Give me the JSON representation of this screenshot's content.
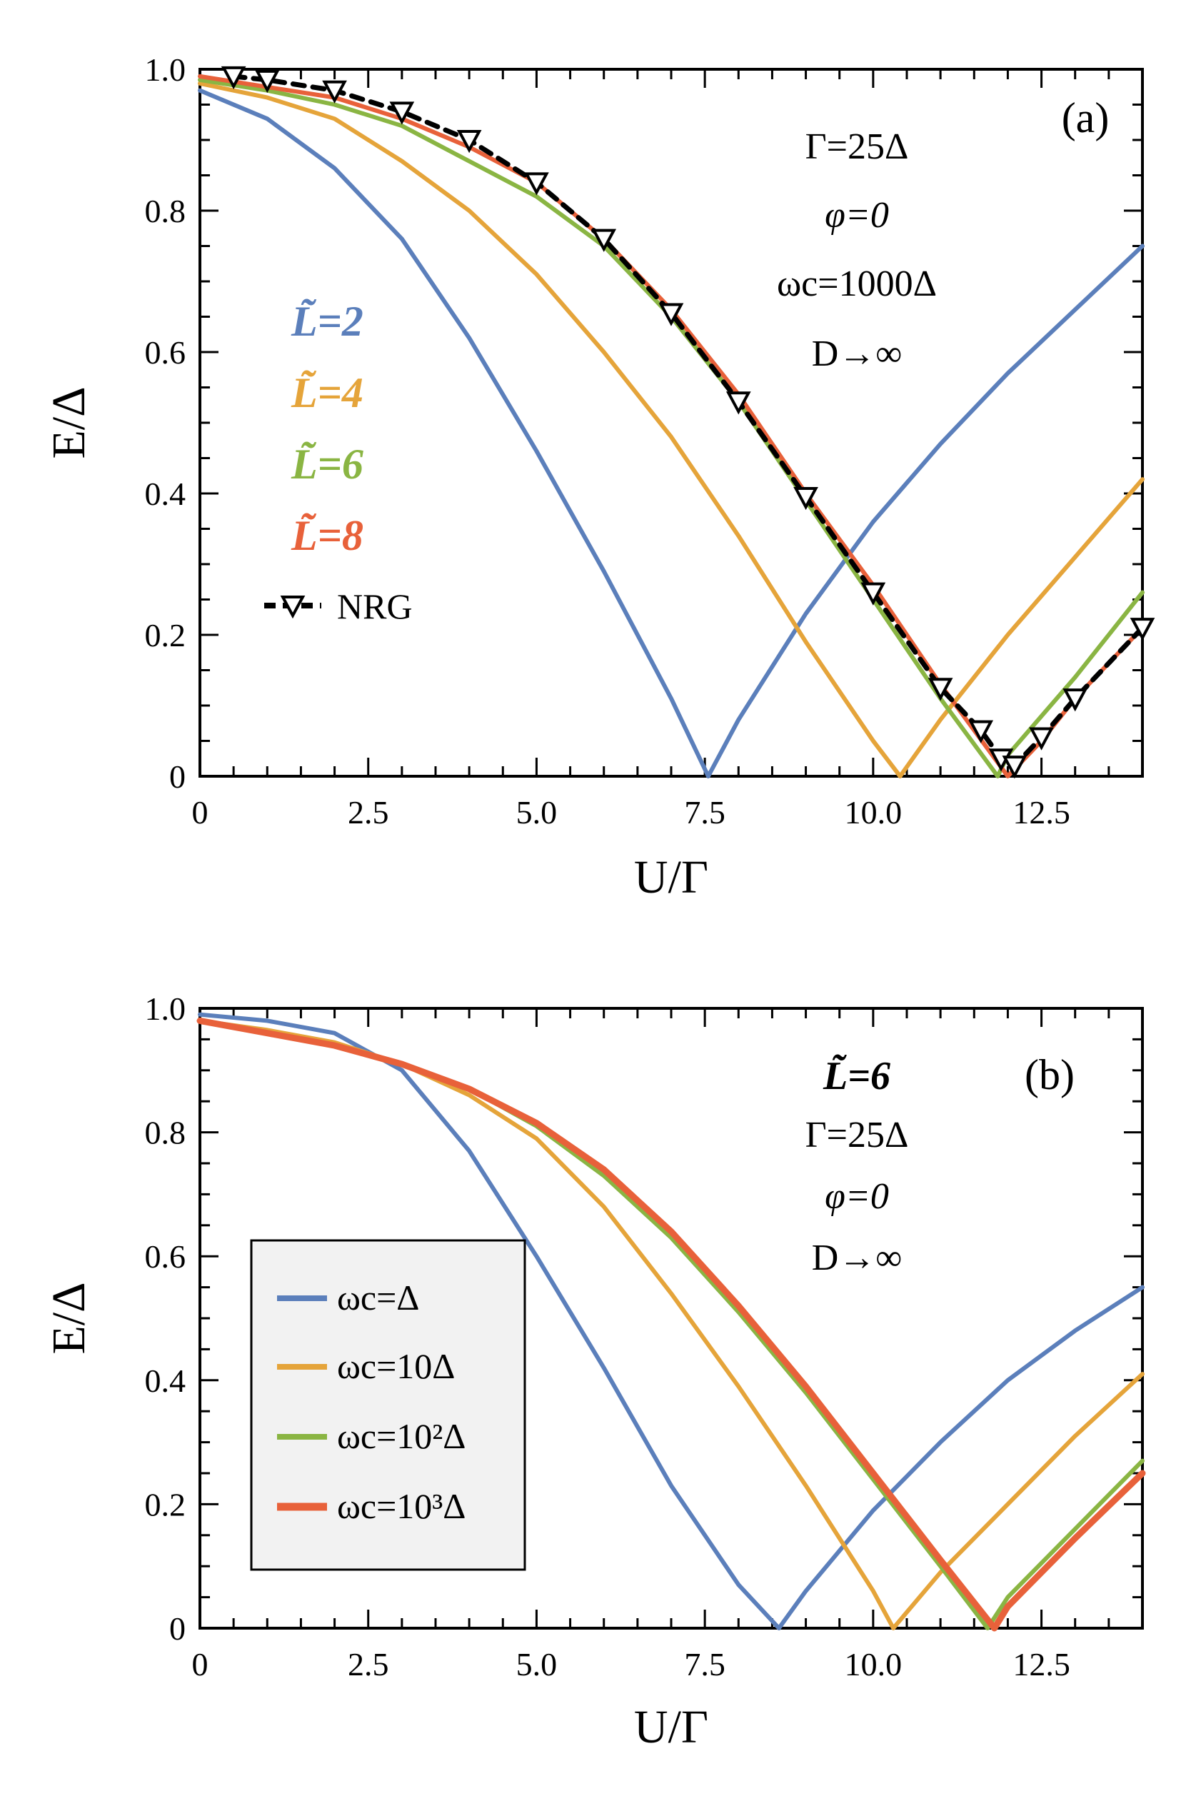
{
  "chart_data": [
    {
      "panel": "(a)",
      "type": "line",
      "xlabel": "U/Γ",
      "ylabel": "E/Δ",
      "xlim": [
        0,
        14
      ],
      "ylim": [
        0,
        1
      ],
      "xticks": [
        "0",
        "2.5",
        "5.0",
        "7.5",
        "10.0",
        "12.5"
      ],
      "yticks": [
        "0",
        "0.2",
        "0.4",
        "0.6",
        "0.8",
        "1.0"
      ],
      "annotations": [
        "Γ=25Δ",
        "φ=0",
        "ωc=1000Δ",
        "D→∞"
      ],
      "legend_placement": "left",
      "series": [
        {
          "name": "L̃=2",
          "color": "#5b7fbb",
          "x": [
            0,
            1,
            2,
            3,
            4,
            5,
            6,
            7,
            7.55,
            8,
            9,
            10,
            11,
            12,
            13,
            14
          ],
          "y": [
            0.97,
            0.93,
            0.86,
            0.76,
            0.62,
            0.46,
            0.29,
            0.11,
            0.0,
            0.08,
            0.23,
            0.36,
            0.47,
            0.57,
            0.66,
            0.75
          ]
        },
        {
          "name": "L̃=4",
          "color": "#e5a43a",
          "x": [
            0,
            1,
            2,
            3,
            4,
            5,
            6,
            7,
            8,
            9,
            10,
            10.4,
            11,
            12,
            13,
            14
          ],
          "y": [
            0.98,
            0.96,
            0.93,
            0.87,
            0.8,
            0.71,
            0.6,
            0.48,
            0.34,
            0.19,
            0.05,
            0.0,
            0.08,
            0.2,
            0.31,
            0.42
          ]
        },
        {
          "name": "L̃=6",
          "color": "#8ab543",
          "x": [
            0,
            1,
            2,
            3,
            4,
            5,
            6,
            7,
            8,
            9,
            10,
            11,
            11.85,
            12,
            13,
            14
          ],
          "y": [
            0.985,
            0.97,
            0.95,
            0.92,
            0.87,
            0.82,
            0.75,
            0.65,
            0.53,
            0.39,
            0.25,
            0.11,
            0.0,
            0.03,
            0.14,
            0.26
          ]
        },
        {
          "name": "L̃=8",
          "color": "#e8613a",
          "x": [
            0,
            1,
            2,
            3,
            4,
            5,
            6,
            7,
            8,
            9,
            10,
            11,
            12.0,
            12.5,
            13,
            14
          ],
          "y": [
            0.99,
            0.975,
            0.96,
            0.93,
            0.89,
            0.84,
            0.76,
            0.66,
            0.54,
            0.4,
            0.27,
            0.13,
            0.0,
            0.05,
            0.11,
            0.21
          ]
        },
        {
          "name": "NRG",
          "color": "#000000",
          "style": "dashed-triangles",
          "x": [
            0.5,
            1,
            2,
            3,
            4,
            5,
            6,
            7,
            8,
            9,
            10,
            11,
            11.6,
            11.9,
            12.1,
            12.5,
            13,
            14
          ],
          "y": [
            0.99,
            0.985,
            0.97,
            0.94,
            0.9,
            0.84,
            0.76,
            0.655,
            0.53,
            0.395,
            0.26,
            0.125,
            0.065,
            0.025,
            0.015,
            0.055,
            0.11,
            0.21
          ]
        }
      ]
    },
    {
      "panel": "(b)",
      "type": "line",
      "xlabel": "U/Γ",
      "ylabel": "E/Δ",
      "xlim": [
        0,
        14
      ],
      "ylim": [
        0,
        1
      ],
      "xticks": [
        "0",
        "2.5",
        "5.0",
        "7.5",
        "10.0",
        "12.5"
      ],
      "yticks": [
        "0",
        "0.2",
        "0.4",
        "0.6",
        "0.8",
        "1.0"
      ],
      "annotations": [
        "L̃=6",
        "Γ=25Δ",
        "φ=0",
        "D→∞"
      ],
      "legend_placement": "bottom-left",
      "series": [
        {
          "name": "ωc=Δ",
          "color": "#5b7fbb",
          "x": [
            0,
            1,
            2,
            2.5,
            3,
            4,
            5,
            6,
            7,
            8,
            8.6,
            9,
            10,
            11,
            12,
            13,
            14
          ],
          "y": [
            0.99,
            0.98,
            0.96,
            0.93,
            0.9,
            0.77,
            0.6,
            0.42,
            0.23,
            0.07,
            0.0,
            0.06,
            0.19,
            0.3,
            0.4,
            0.48,
            0.55
          ]
        },
        {
          "name": "ωc=10Δ",
          "color": "#e5a43a",
          "x": [
            0,
            1,
            2,
            3,
            4,
            5,
            6,
            7,
            8,
            9,
            10,
            10.3,
            11,
            12,
            13,
            14
          ],
          "y": [
            0.98,
            0.965,
            0.945,
            0.91,
            0.86,
            0.79,
            0.68,
            0.54,
            0.39,
            0.23,
            0.06,
            0.0,
            0.09,
            0.2,
            0.31,
            0.41
          ]
        },
        {
          "name": "ωc=10²Δ",
          "color": "#8ab543",
          "x": [
            0,
            1,
            2,
            3,
            4,
            5,
            6,
            7,
            8,
            9,
            10,
            11,
            11.7,
            12,
            13,
            14
          ],
          "y": [
            0.98,
            0.96,
            0.94,
            0.91,
            0.87,
            0.81,
            0.73,
            0.63,
            0.51,
            0.38,
            0.24,
            0.1,
            0.0,
            0.05,
            0.16,
            0.27
          ]
        },
        {
          "name": "ωc=10³Δ",
          "color": "#e8613a",
          "x": [
            0,
            1,
            2,
            3,
            4,
            5,
            6,
            7,
            8,
            9,
            10,
            11,
            11.8,
            12,
            13,
            14
          ],
          "y": [
            0.98,
            0.96,
            0.94,
            0.91,
            0.87,
            0.815,
            0.74,
            0.64,
            0.52,
            0.39,
            0.25,
            0.11,
            0.0,
            0.035,
            0.145,
            0.25
          ]
        }
      ]
    }
  ]
}
